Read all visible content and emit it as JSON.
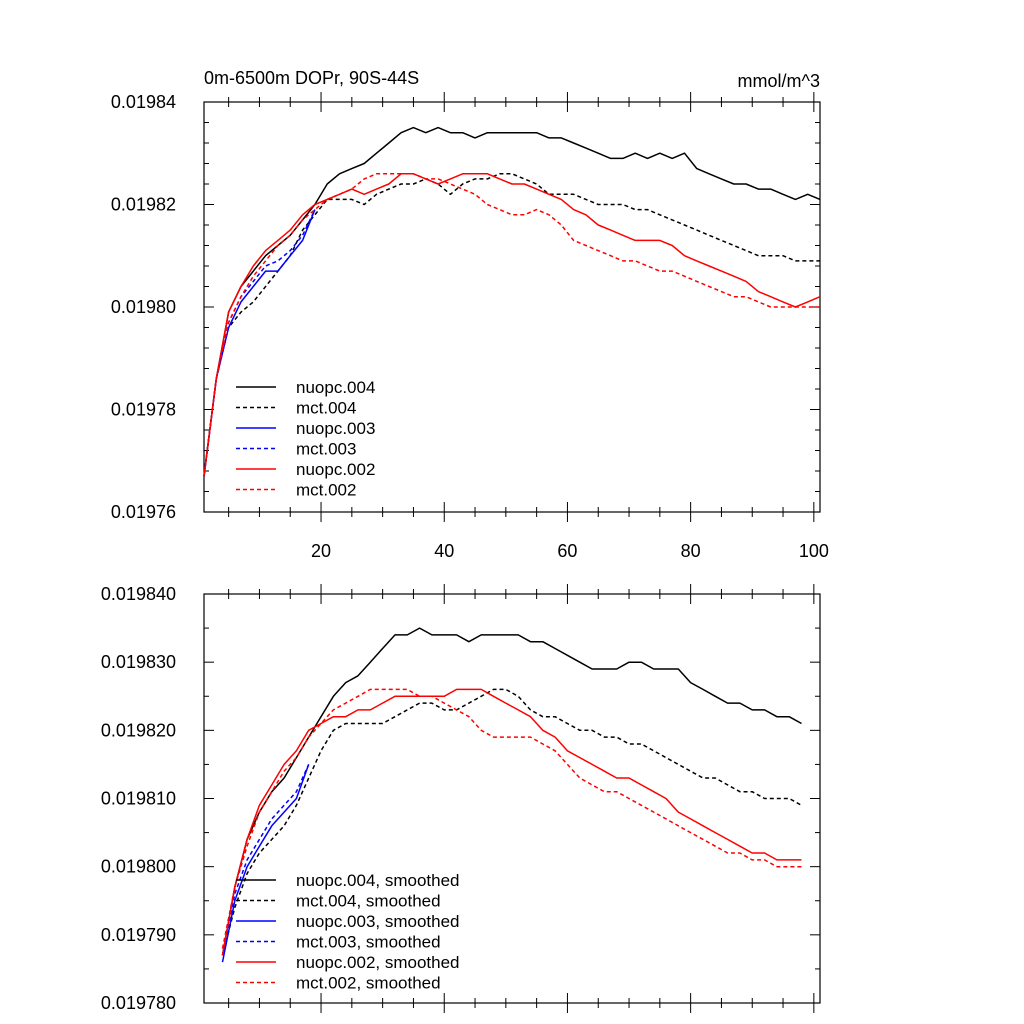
{
  "chart_data": [
    {
      "type": "line",
      "title": "0m-6500m DOPr, 90S-44S",
      "units": "mmol/m^3",
      "xlim": [
        1,
        101
      ],
      "ylim": [
        0.01976,
        0.01984
      ],
      "xticks": [
        20,
        40,
        60,
        80,
        100
      ],
      "xtick_labels": [
        "20",
        "40",
        "60",
        "80",
        "100"
      ],
      "yticks": [
        0.01976,
        0.01978,
        0.0198,
        0.01982,
        0.01984
      ],
      "ytick_labels": [
        "0.01976",
        "0.01978",
        "0.01980",
        "0.01982",
        "0.01984"
      ],
      "legend_position": "lower-left",
      "series": [
        {
          "name": "nuopc.004",
          "color": "#000000",
          "dash": "solid",
          "x": [
            1,
            3,
            5,
            7,
            9,
            11,
            13,
            15,
            17,
            19,
            21,
            23,
            25,
            27,
            29,
            31,
            33,
            35,
            37,
            39,
            41,
            43,
            45,
            47,
            49,
            51,
            53,
            55,
            57,
            59,
            61,
            63,
            65,
            67,
            69,
            71,
            73,
            75,
            77,
            79,
            81,
            83,
            85,
            87,
            89,
            91,
            93,
            95,
            97,
            99,
            101
          ],
          "y": [
            0.019767,
            0.019786,
            0.019799,
            0.019804,
            0.019807,
            0.01981,
            0.019812,
            0.019814,
            0.019817,
            0.01982,
            0.019824,
            0.019826,
            0.019827,
            0.019828,
            0.01983,
            0.019832,
            0.019834,
            0.019835,
            0.019834,
            0.019835,
            0.019834,
            0.019834,
            0.019833,
            0.019834,
            0.019834,
            0.019834,
            0.019834,
            0.019834,
            0.019833,
            0.019833,
            0.019832,
            0.019831,
            0.01983,
            0.019829,
            0.019829,
            0.01983,
            0.019829,
            0.01983,
            0.019829,
            0.01983,
            0.019827,
            0.019826,
            0.019825,
            0.019824,
            0.019824,
            0.019823,
            0.019823,
            0.019822,
            0.019821,
            0.019822,
            0.019821
          ]
        },
        {
          "name": "mct.004",
          "color": "#000000",
          "dash": "dashed",
          "x": [
            1,
            3,
            5,
            7,
            9,
            11,
            13,
            15,
            17,
            19,
            21,
            23,
            25,
            27,
            29,
            31,
            33,
            35,
            37,
            39,
            41,
            43,
            45,
            47,
            49,
            51,
            53,
            55,
            57,
            59,
            61,
            63,
            65,
            67,
            69,
            71,
            73,
            75,
            77,
            79,
            81,
            83,
            85,
            87,
            89,
            91,
            93,
            95,
            97,
            99,
            101
          ],
          "y": [
            0.019767,
            0.019786,
            0.019796,
            0.019799,
            0.019801,
            0.019804,
            0.019807,
            0.01981,
            0.019815,
            0.019818,
            0.019821,
            0.019821,
            0.019821,
            0.01982,
            0.019822,
            0.019823,
            0.019824,
            0.019824,
            0.019825,
            0.019824,
            0.019822,
            0.019824,
            0.019825,
            0.019825,
            0.019826,
            0.019826,
            0.019825,
            0.019824,
            0.019822,
            0.019822,
            0.019822,
            0.019821,
            0.01982,
            0.01982,
            0.01982,
            0.019819,
            0.019819,
            0.019818,
            0.019817,
            0.019816,
            0.019815,
            0.019814,
            0.019813,
            0.019812,
            0.019811,
            0.01981,
            0.01981,
            0.01981,
            0.019809,
            0.019809,
            0.019809
          ]
        },
        {
          "name": "nuopc.003",
          "color": "#0000ff",
          "dash": "solid",
          "x": [
            1,
            3,
            5,
            7,
            9,
            11,
            13,
            15,
            17,
            19
          ],
          "y": [
            0.019767,
            0.019786,
            0.019796,
            0.019801,
            0.019804,
            0.019807,
            0.019807,
            0.01981,
            0.019813,
            0.019819
          ]
        },
        {
          "name": "mct.003",
          "color": "#0000ff",
          "dash": "dashed",
          "x": [
            1,
            3,
            5,
            7,
            9,
            11,
            13,
            15,
            17,
            19
          ],
          "y": [
            0.019767,
            0.019786,
            0.019797,
            0.019802,
            0.019805,
            0.019808,
            0.019809,
            0.019811,
            0.019814,
            0.019819
          ]
        },
        {
          "name": "nuopc.002",
          "color": "#ff0000",
          "dash": "solid",
          "x": [
            1,
            3,
            5,
            7,
            9,
            11,
            13,
            15,
            17,
            19,
            21,
            23,
            25,
            27,
            29,
            31,
            33,
            35,
            37,
            39,
            41,
            43,
            45,
            47,
            49,
            51,
            53,
            55,
            57,
            59,
            61,
            63,
            65,
            67,
            69,
            71,
            73,
            75,
            77,
            79,
            81,
            83,
            85,
            87,
            89,
            91,
            93,
            95,
            97,
            99,
            101
          ],
          "y": [
            0.019767,
            0.019786,
            0.019799,
            0.019804,
            0.019808,
            0.019811,
            0.019813,
            0.019815,
            0.019818,
            0.01982,
            0.019821,
            0.019822,
            0.019823,
            0.019822,
            0.019823,
            0.019824,
            0.019826,
            0.019826,
            0.019825,
            0.019824,
            0.019825,
            0.019826,
            0.019826,
            0.019826,
            0.019825,
            0.019824,
            0.019824,
            0.019823,
            0.019822,
            0.019821,
            0.019819,
            0.019818,
            0.019816,
            0.019815,
            0.019814,
            0.019813,
            0.019813,
            0.019813,
            0.019812,
            0.01981,
            0.019809,
            0.019808,
            0.019807,
            0.019806,
            0.019805,
            0.019803,
            0.019802,
            0.019801,
            0.0198,
            0.019801,
            0.019802
          ]
        },
        {
          "name": "mct.002",
          "color": "#ff0000",
          "dash": "dashed",
          "x": [
            1,
            3,
            5,
            7,
            9,
            11,
            13,
            15,
            17,
            19,
            21,
            23,
            25,
            27,
            29,
            31,
            33,
            35,
            37,
            39,
            41,
            43,
            45,
            47,
            49,
            51,
            53,
            55,
            57,
            59,
            61,
            63,
            65,
            67,
            69,
            71,
            73,
            75,
            77,
            79,
            81,
            83,
            85,
            87,
            89,
            91,
            93,
            95,
            97,
            99,
            101
          ],
          "y": [
            0.019767,
            0.019786,
            0.019797,
            0.019802,
            0.019806,
            0.019809,
            0.019812,
            0.019814,
            0.019817,
            0.019819,
            0.019821,
            0.019822,
            0.019823,
            0.019825,
            0.019826,
            0.019826,
            0.019826,
            0.019826,
            0.019825,
            0.019825,
            0.019824,
            0.019823,
            0.019822,
            0.01982,
            0.019819,
            0.019818,
            0.019818,
            0.019819,
            0.019818,
            0.019816,
            0.019813,
            0.019812,
            0.019811,
            0.01981,
            0.019809,
            0.019809,
            0.019808,
            0.019807,
            0.019807,
            0.019806,
            0.019805,
            0.019804,
            0.019803,
            0.019802,
            0.019802,
            0.019801,
            0.0198,
            0.0198,
            0.0198,
            0.0198,
            0.0198
          ]
        }
      ]
    },
    {
      "type": "line",
      "xlim": [
        1,
        101
      ],
      "ylim": [
        0.01978,
        0.01984
      ],
      "xticks": [
        20,
        40,
        60,
        80,
        100
      ],
      "yticks": [
        0.01978,
        0.01979,
        0.0198,
        0.01981,
        0.01982,
        0.01983,
        0.01984
      ],
      "ytick_labels": [
        "0.019780",
        "0.019790",
        "0.019800",
        "0.019810",
        "0.019820",
        "0.019830",
        "0.019840"
      ],
      "legend_position": "lower-left",
      "series": [
        {
          "name": "nuopc.004, smoothed",
          "color": "#000000",
          "dash": "solid",
          "x": [
            4,
            6,
            8,
            10,
            12,
            14,
            16,
            18,
            20,
            22,
            24,
            26,
            28,
            30,
            32,
            34,
            36,
            38,
            40,
            42,
            44,
            46,
            48,
            50,
            52,
            54,
            56,
            58,
            60,
            62,
            64,
            66,
            68,
            70,
            72,
            74,
            76,
            78,
            80,
            82,
            84,
            86,
            88,
            90,
            92,
            94,
            96,
            98
          ],
          "y": [
            0.019787,
            0.019797,
            0.019804,
            0.019808,
            0.019811,
            0.019813,
            0.019816,
            0.019819,
            0.019822,
            0.019825,
            0.019827,
            0.019828,
            0.01983,
            0.019832,
            0.019834,
            0.019834,
            0.019835,
            0.019834,
            0.019834,
            0.019834,
            0.019833,
            0.019834,
            0.019834,
            0.019834,
            0.019834,
            0.019833,
            0.019833,
            0.019832,
            0.019831,
            0.01983,
            0.019829,
            0.019829,
            0.019829,
            0.01983,
            0.01983,
            0.019829,
            0.019829,
            0.019829,
            0.019827,
            0.019826,
            0.019825,
            0.019824,
            0.019824,
            0.019823,
            0.019823,
            0.019822,
            0.019822,
            0.019821
          ]
        },
        {
          "name": "mct.004, smoothed",
          "color": "#000000",
          "dash": "dashed",
          "x": [
            4,
            6,
            8,
            10,
            12,
            14,
            16,
            18,
            20,
            22,
            24,
            26,
            28,
            30,
            32,
            34,
            36,
            38,
            40,
            42,
            44,
            46,
            48,
            50,
            52,
            54,
            56,
            58,
            60,
            62,
            64,
            66,
            68,
            70,
            72,
            74,
            76,
            78,
            80,
            82,
            84,
            86,
            88,
            90,
            92,
            94,
            96,
            98
          ],
          "y": [
            0.019787,
            0.019794,
            0.019799,
            0.019802,
            0.019804,
            0.019806,
            0.019809,
            0.019813,
            0.019817,
            0.01982,
            0.019821,
            0.019821,
            0.019821,
            0.019821,
            0.019822,
            0.019823,
            0.019824,
            0.019824,
            0.019823,
            0.019823,
            0.019824,
            0.019825,
            0.019826,
            0.019826,
            0.019825,
            0.019823,
            0.019822,
            0.019822,
            0.019821,
            0.01982,
            0.01982,
            0.019819,
            0.019819,
            0.019818,
            0.019818,
            0.019817,
            0.019816,
            0.019815,
            0.019814,
            0.019813,
            0.019813,
            0.019812,
            0.019811,
            0.019811,
            0.01981,
            0.01981,
            0.01981,
            0.019809
          ]
        },
        {
          "name": "nuopc.003, smoothed",
          "color": "#0000ff",
          "dash": "solid",
          "x": [
            4,
            6,
            8,
            10,
            12,
            14,
            16,
            18
          ],
          "y": [
            0.019786,
            0.019795,
            0.0198,
            0.019803,
            0.019806,
            0.019808,
            0.01981,
            0.019815
          ]
        },
        {
          "name": "mct.003, smoothed",
          "color": "#0000ff",
          "dash": "dashed",
          "x": [
            4,
            6,
            8,
            10,
            12,
            14,
            16,
            18
          ],
          "y": [
            0.019787,
            0.019796,
            0.019801,
            0.019804,
            0.019807,
            0.019809,
            0.019811,
            0.019815
          ]
        },
        {
          "name": "nuopc.002, smoothed",
          "color": "#ff0000",
          "dash": "solid",
          "x": [
            4,
            6,
            8,
            10,
            12,
            14,
            16,
            18,
            20,
            22,
            24,
            26,
            28,
            30,
            32,
            34,
            36,
            38,
            40,
            42,
            44,
            46,
            48,
            50,
            52,
            54,
            56,
            58,
            60,
            62,
            64,
            66,
            68,
            70,
            72,
            74,
            76,
            78,
            80,
            82,
            84,
            86,
            88,
            90,
            92,
            94,
            96,
            98
          ],
          "y": [
            0.019787,
            0.019797,
            0.019804,
            0.019809,
            0.019812,
            0.019815,
            0.019817,
            0.01982,
            0.019821,
            0.019822,
            0.019822,
            0.019823,
            0.019823,
            0.019824,
            0.019825,
            0.019825,
            0.019825,
            0.019825,
            0.019825,
            0.019826,
            0.019826,
            0.019826,
            0.019825,
            0.019824,
            0.019823,
            0.019822,
            0.01982,
            0.019819,
            0.019817,
            0.019816,
            0.019815,
            0.019814,
            0.019813,
            0.019813,
            0.019812,
            0.019811,
            0.01981,
            0.019808,
            0.019807,
            0.019806,
            0.019805,
            0.019804,
            0.019803,
            0.019802,
            0.019802,
            0.019801,
            0.019801,
            0.019801
          ]
        },
        {
          "name": "mct.002, smoothed",
          "color": "#ff0000",
          "dash": "dashed",
          "x": [
            4,
            6,
            8,
            10,
            12,
            14,
            16,
            18,
            20,
            22,
            24,
            26,
            28,
            30,
            32,
            34,
            36,
            38,
            40,
            42,
            44,
            46,
            48,
            50,
            52,
            54,
            56,
            58,
            60,
            62,
            64,
            66,
            68,
            70,
            72,
            74,
            76,
            78,
            80,
            82,
            84,
            86,
            88,
            90,
            92,
            94,
            96,
            98
          ],
          "y": [
            0.019788,
            0.019797,
            0.019803,
            0.019808,
            0.019811,
            0.019814,
            0.019816,
            0.019819,
            0.019821,
            0.019823,
            0.019824,
            0.019825,
            0.019826,
            0.019826,
            0.019826,
            0.019826,
            0.019825,
            0.019825,
            0.019824,
            0.019823,
            0.019822,
            0.01982,
            0.019819,
            0.019819,
            0.019819,
            0.019819,
            0.019818,
            0.019817,
            0.019815,
            0.019813,
            0.019812,
            0.019811,
            0.019811,
            0.01981,
            0.019809,
            0.019808,
            0.019807,
            0.019806,
            0.019805,
            0.019804,
            0.019803,
            0.019802,
            0.019802,
            0.019801,
            0.019801,
            0.0198,
            0.0198,
            0.0198
          ]
        }
      ]
    }
  ]
}
